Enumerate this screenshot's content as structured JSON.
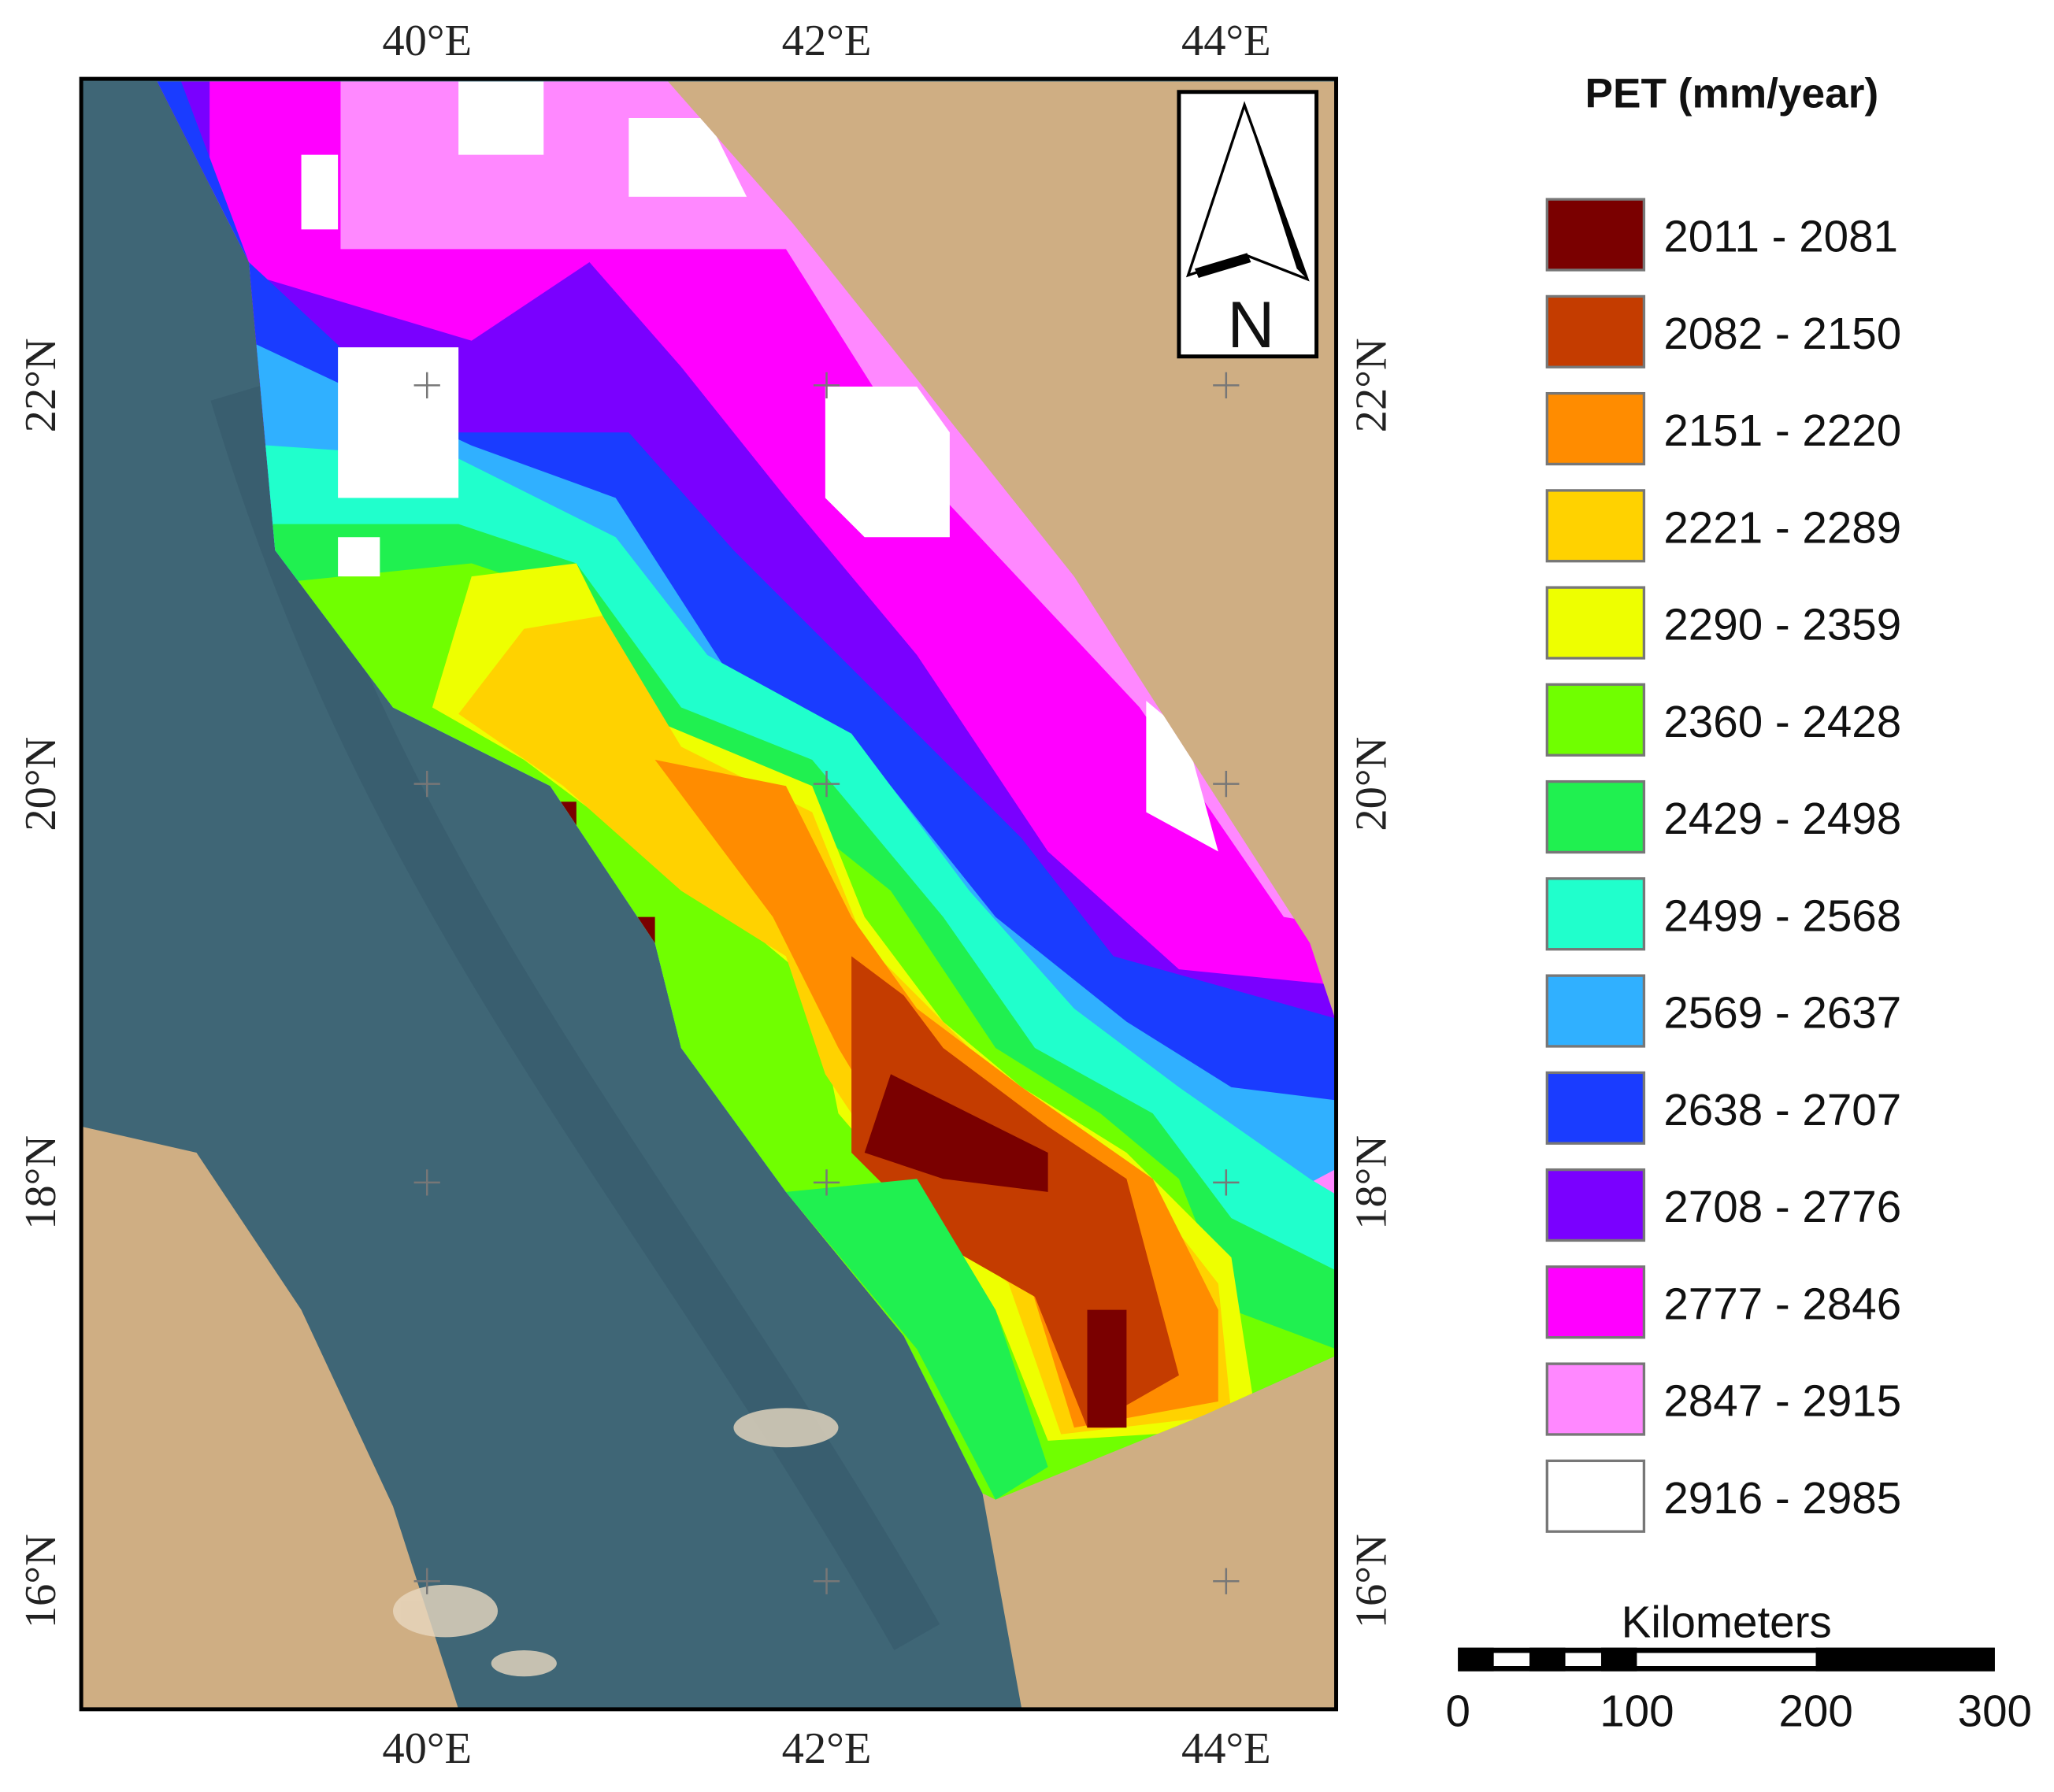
{
  "map": {
    "xticks": [
      {
        "value": 40,
        "label": "40°E"
      },
      {
        "value": 42,
        "label": "42°E"
      },
      {
        "value": 44,
        "label": "44°E"
      }
    ],
    "yticks": [
      {
        "value": 22,
        "label": "22°N"
      },
      {
        "value": 20,
        "label": "20°N"
      },
      {
        "value": 18,
        "label": "18°N"
      },
      {
        "value": 16,
        "label": "16°N"
      }
    ],
    "north": "N"
  },
  "legend": {
    "title": "PET (mm/year)",
    "items": [
      {
        "label": "2011 - 2081",
        "color": "#7a0000"
      },
      {
        "label": "2082 - 2150",
        "color": "#c43c00"
      },
      {
        "label": "2151 - 2220",
        "color": "#ff8c00"
      },
      {
        "label": "2221 - 2289",
        "color": "#ffd200"
      },
      {
        "label": "2290 - 2359",
        "color": "#eeff00"
      },
      {
        "label": "2360 - 2428",
        "color": "#70ff00"
      },
      {
        "label": "2429 - 2498",
        "color": "#20f050"
      },
      {
        "label": "2499 - 2568",
        "color": "#20ffcc"
      },
      {
        "label": "2569 - 2637",
        "color": "#30b0ff"
      },
      {
        "label": "2638 - 2707",
        "color": "#1a3cff"
      },
      {
        "label": "2708 - 2776",
        "color": "#7a00ff"
      },
      {
        "label": "2777 - 2846",
        "color": "#ff00ff"
      },
      {
        "label": "2847 - 2915",
        "color": "#ff88ff"
      },
      {
        "label": "2916 - 2985",
        "color": "#ffffff"
      }
    ]
  },
  "scale_bar": {
    "title": "Kilometers",
    "ticks": [
      0,
      100,
      200,
      300
    ]
  }
}
